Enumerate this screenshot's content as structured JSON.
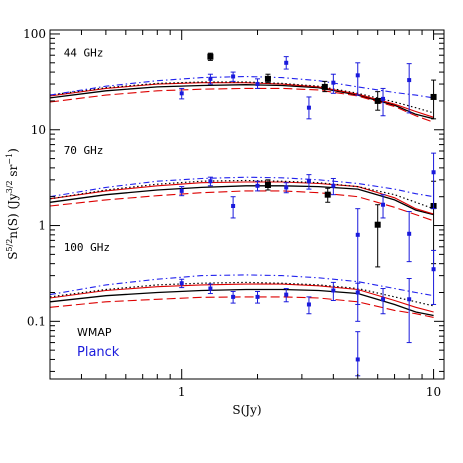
{
  "chart_data": {
    "type": "scatter",
    "title": "",
    "xlabel": "S(Jy)",
    "ylabel_parts": {
      "s": "S",
      "s_exp": "5/2",
      "mid": "n(S)  (Jy",
      "jy_exp": "3/2",
      "sr": " sr",
      "sr_exp": "−1",
      "close": ")"
    },
    "xscale": "log",
    "yscale": "log",
    "xlim": [
      0.3,
      11
    ],
    "ylim": [
      0.025,
      110
    ],
    "x_tick_labels": [
      {
        "value": 1,
        "label": "1"
      },
      {
        "value": 10,
        "label": "10"
      }
    ],
    "y_tick_labels": [
      {
        "value": 0.1,
        "label": "0.1"
      },
      {
        "value": 1,
        "label": "1"
      },
      {
        "value": 10,
        "label": "10"
      },
      {
        "value": 100,
        "label": "100"
      }
    ],
    "panel_labels": [
      {
        "text": "44 GHz",
        "x": 0.34,
        "y": 58
      },
      {
        "text": "70 GHz",
        "x": 0.34,
        "y": 5.6
      },
      {
        "text": "100 GHz",
        "x": 0.34,
        "y": 0.54
      }
    ],
    "legend": {
      "wmap": "WMAP",
      "planck": "Planck",
      "placement": "bottom-left"
    },
    "colors": {
      "wmap": "#000000",
      "planck": "#1a1adc",
      "red": "#dd0000",
      "dotdash": "#2222ee"
    },
    "model_curves": {
      "x": [
        0.3,
        0.5,
        0.8,
        1.2,
        1.8,
        2.5,
        3.5,
        5.0,
        7.0,
        8.5,
        10.0
      ],
      "panels": [
        {
          "name": "44 GHz",
          "black_solid": [
            21.5,
            25.5,
            28.0,
            29.0,
            29.5,
            29.0,
            27.5,
            23.0,
            18.0,
            14.5,
            13.0
          ],
          "red_dashed": [
            19.5,
            23.0,
            25.5,
            26.5,
            27.0,
            27.0,
            26.0,
            22.5,
            17.5,
            14.0,
            12.0
          ],
          "red_solid": [
            22.5,
            27.0,
            30.0,
            31.0,
            31.0,
            30.0,
            28.0,
            23.5,
            18.5,
            15.5,
            13.5
          ],
          "black_dotted": [
            23.0,
            27.5,
            30.5,
            31.5,
            31.5,
            30.5,
            28.5,
            24.0,
            19.5,
            17.0,
            15.0
          ],
          "blue_dotdash": [
            23.0,
            28.5,
            32.5,
            35.0,
            36.0,
            35.0,
            32.5,
            28.0,
            24.5,
            23.0,
            21.5
          ]
        },
        {
          "name": "70 GHz",
          "black_solid": [
            1.75,
            2.1,
            2.35,
            2.5,
            2.6,
            2.6,
            2.55,
            2.4,
            1.85,
            1.45,
            1.3
          ],
          "red_dashed": [
            1.6,
            1.85,
            2.05,
            2.2,
            2.3,
            2.3,
            2.2,
            2.0,
            1.55,
            1.3,
            1.12
          ],
          "red_solid": [
            1.9,
            2.3,
            2.6,
            2.8,
            2.85,
            2.85,
            2.75,
            2.55,
            1.95,
            1.5,
            1.32
          ],
          "black_dotted": [
            1.9,
            2.35,
            2.7,
            2.9,
            2.95,
            2.9,
            2.8,
            2.55,
            2.1,
            1.75,
            1.5
          ],
          "blue_dotdash": [
            2.0,
            2.5,
            2.9,
            3.1,
            3.2,
            3.15,
            3.0,
            2.75,
            2.4,
            2.15,
            2.0
          ]
        },
        {
          "name": "100 GHz",
          "black_solid": [
            0.16,
            0.185,
            0.2,
            0.21,
            0.215,
            0.215,
            0.21,
            0.195,
            0.15,
            0.125,
            0.115
          ],
          "red_dashed": [
            0.14,
            0.16,
            0.17,
            0.178,
            0.18,
            0.18,
            0.175,
            0.16,
            0.13,
            0.12,
            0.11
          ],
          "red_solid": [
            0.175,
            0.21,
            0.23,
            0.24,
            0.245,
            0.245,
            0.235,
            0.215,
            0.165,
            0.14,
            0.125
          ],
          "black_dotted": [
            0.18,
            0.215,
            0.24,
            0.25,
            0.255,
            0.25,
            0.24,
            0.22,
            0.18,
            0.16,
            0.145
          ],
          "blue_dotdash": [
            0.19,
            0.24,
            0.275,
            0.3,
            0.305,
            0.3,
            0.285,
            0.26,
            0.22,
            0.2,
            0.185
          ]
        }
      ]
    },
    "wmap_points": [
      {
        "x": 1.3,
        "y": 58,
        "ylo": 53,
        "yhi": 63
      },
      {
        "x": 2.2,
        "y": 34,
        "ylo": 31,
        "yhi": 38
      },
      {
        "x": 3.7,
        "y": 28,
        "ylo": 25,
        "yhi": 32
      },
      {
        "x": 6.0,
        "y": 20,
        "ylo": 16,
        "yhi": 25
      },
      {
        "x": 10.0,
        "y": 22,
        "ylo": 13,
        "yhi": 33
      },
      {
        "x": 2.2,
        "y": 2.65,
        "ylo": 2.35,
        "yhi": 3.0
      },
      {
        "x": 3.8,
        "y": 2.1,
        "ylo": 1.75,
        "yhi": 2.45
      },
      {
        "x": 6.0,
        "y": 1.02,
        "ylo": 0.37,
        "yhi": 1.65
      },
      {
        "x": 10.0,
        "y": 1.6,
        "ylo": 0.4,
        "yhi": 2.9
      }
    ],
    "planck_points": [
      {
        "x": 1.0,
        "y": 24,
        "ylo": 21,
        "yhi": 27
      },
      {
        "x": 1.3,
        "y": 34,
        "ylo": 30,
        "yhi": 38
      },
      {
        "x": 1.6,
        "y": 36,
        "ylo": 32,
        "yhi": 40
      },
      {
        "x": 2.0,
        "y": 30,
        "ylo": 27,
        "yhi": 34
      },
      {
        "x": 2.6,
        "y": 50,
        "ylo": 43,
        "yhi": 58
      },
      {
        "x": 3.2,
        "y": 17,
        "ylo": 13,
        "yhi": 22
      },
      {
        "x": 4.0,
        "y": 31,
        "ylo": 24,
        "yhi": 38
      },
      {
        "x": 5.0,
        "y": 37,
        "ylo": 23,
        "yhi": 50
      },
      {
        "x": 6.3,
        "y": 21,
        "ylo": 14,
        "yhi": 27
      },
      {
        "x": 8.0,
        "y": 33,
        "ylo": 15,
        "yhi": 49
      },
      {
        "x": 1.0,
        "y": 2.3,
        "ylo": 2.05,
        "yhi": 2.55
      },
      {
        "x": 1.3,
        "y": 2.9,
        "ylo": 2.6,
        "yhi": 3.2
      },
      {
        "x": 1.6,
        "y": 1.6,
        "ylo": 1.2,
        "yhi": 2.0
      },
      {
        "x": 2.0,
        "y": 2.6,
        "ylo": 2.3,
        "yhi": 2.9
      },
      {
        "x": 2.6,
        "y": 2.5,
        "ylo": 2.2,
        "yhi": 2.8
      },
      {
        "x": 3.2,
        "y": 2.9,
        "ylo": 2.4,
        "yhi": 3.4
      },
      {
        "x": 4.0,
        "y": 2.6,
        "ylo": 2.1,
        "yhi": 3.1
      },
      {
        "x": 5.0,
        "y": 0.8,
        "ylo": 0.1,
        "yhi": 1.5
      },
      {
        "x": 6.3,
        "y": 1.65,
        "ylo": 1.2,
        "yhi": 2.1
      },
      {
        "x": 8.0,
        "y": 0.82,
        "ylo": 0.42,
        "yhi": 1.4
      },
      {
        "x": 10.0,
        "y": 3.6,
        "ylo": 1.5,
        "yhi": 5.7
      },
      {
        "x": 1.0,
        "y": 0.25,
        "ylo": 0.225,
        "yhi": 0.275
      },
      {
        "x": 1.3,
        "y": 0.22,
        "ylo": 0.195,
        "yhi": 0.245
      },
      {
        "x": 1.6,
        "y": 0.18,
        "ylo": 0.155,
        "yhi": 0.205
      },
      {
        "x": 2.0,
        "y": 0.18,
        "ylo": 0.155,
        "yhi": 0.205
      },
      {
        "x": 2.6,
        "y": 0.19,
        "ylo": 0.16,
        "yhi": 0.22
      },
      {
        "x": 3.2,
        "y": 0.15,
        "ylo": 0.12,
        "yhi": 0.18
      },
      {
        "x": 4.0,
        "y": 0.21,
        "ylo": 0.165,
        "yhi": 0.255
      },
      {
        "x": 5.0,
        "y": 0.04,
        "ylo": 0.027,
        "yhi": 0.078
      },
      {
        "x": 5.0,
        "y": 0.2,
        "ylo": 0.15,
        "yhi": 0.25
      },
      {
        "x": 6.3,
        "y": 0.17,
        "ylo": 0.12,
        "yhi": 0.22
      },
      {
        "x": 8.0,
        "y": 0.17,
        "ylo": 0.06,
        "yhi": 0.28
      },
      {
        "x": 10.0,
        "y": 0.35,
        "ylo": 0.15,
        "yhi": 0.55
      }
    ]
  }
}
